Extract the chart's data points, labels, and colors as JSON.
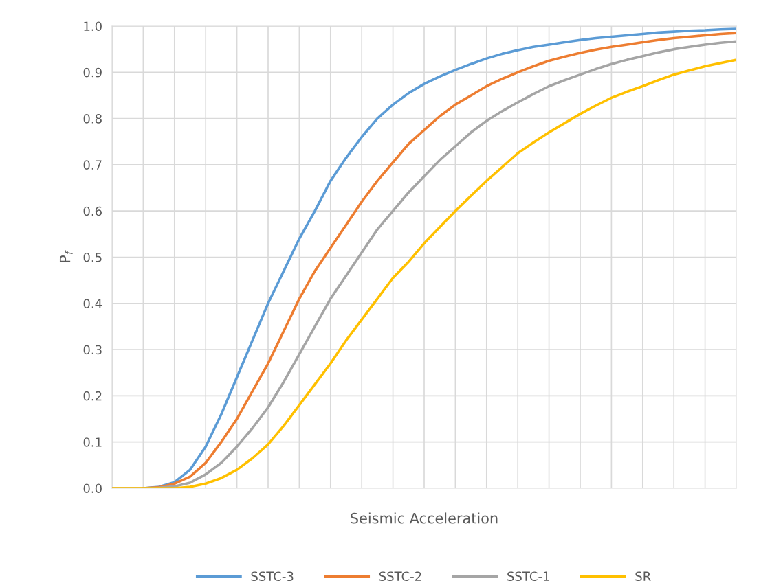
{
  "chart_data": {
    "type": "line",
    "xlabel": "Seismic Acceleration",
    "ylabel": "P$_{f}$",
    "categories": [
      null,
      null,
      null,
      null,
      null,
      null,
      null,
      null,
      null,
      null,
      null,
      null,
      null,
      null,
      null,
      null,
      null,
      null,
      null,
      null,
      null,
      null,
      null,
      null,
      null,
      null,
      null,
      null,
      null,
      null,
      null,
      null,
      null,
      null,
      null,
      null,
      null,
      null,
      null,
      null,
      null
    ],
    "series": [
      {
        "name": "SSTC-3",
        "color": "#5b9bd5",
        "values": [
          null,
          null,
          0,
          0.003,
          0.013,
          0.04,
          0.09,
          0.16,
          0.24,
          0.32,
          0.4,
          0.47,
          0.54,
          0.6,
          0.665,
          0.715,
          0.76,
          0.8,
          0.83,
          0.855,
          0.875,
          0.891,
          0.905,
          0.918,
          0.93,
          0.94,
          0.948,
          0.955,
          0.96,
          0.965,
          0.97,
          0.974,
          0.977,
          0.98,
          0.983,
          0.986,
          0.988,
          0.99,
          0.991,
          0.993,
          0.994
        ]
      },
      {
        "name": "SSTC-2",
        "color": "#ed7d31",
        "values": [
          null,
          null,
          0,
          0.002,
          0.01,
          0.025,
          0.055,
          0.1,
          0.15,
          0.21,
          0.27,
          0.34,
          0.41,
          0.47,
          0.52,
          0.57,
          0.62,
          0.665,
          0.705,
          0.745,
          0.775,
          0.805,
          0.83,
          0.85,
          0.87,
          0.886,
          0.9,
          0.913,
          0.925,
          0.934,
          0.942,
          0.949,
          0.955,
          0.96,
          0.965,
          0.97,
          0.974,
          0.977,
          0.98,
          0.983,
          0.985
        ]
      },
      {
        "name": "SSTC-1",
        "color": "#a5a5a5",
        "values": [
          0,
          0,
          0,
          0.001,
          0.004,
          0.012,
          0.03,
          0.055,
          0.09,
          0.13,
          0.175,
          0.23,
          0.29,
          0.35,
          0.41,
          0.46,
          0.51,
          0.56,
          0.6,
          0.64,
          0.675,
          0.71,
          0.74,
          0.77,
          0.795,
          0.816,
          0.835,
          0.853,
          0.87,
          0.883,
          0.895,
          0.907,
          0.918,
          0.927,
          0.935,
          0.943,
          0.95,
          0.955,
          0.96,
          0.964,
          0.967
        ]
      },
      {
        "name": "SR",
        "color": "#ffc000",
        "values": [
          0,
          0,
          0,
          0,
          0,
          0.003,
          0.01,
          0.022,
          0.04,
          0.065,
          0.095,
          0.135,
          0.18,
          0.225,
          0.27,
          0.32,
          0.365,
          0.41,
          0.455,
          0.49,
          0.53,
          0.565,
          0.6,
          0.633,
          0.665,
          0.695,
          0.725,
          0.748,
          0.77,
          0.79,
          0.81,
          0.828,
          0.845,
          0.858,
          0.87,
          0.883,
          0.895,
          0.904,
          0.913,
          0.92,
          0.927
        ]
      }
    ],
    "ylim": [
      0,
      1
    ],
    "yticks": [
      {
        "value": 0,
        "label": "0.0"
      },
      {
        "value": 0.1,
        "label": "0.1"
      },
      {
        "value": 0.2,
        "label": "0.2"
      },
      {
        "value": 0.3,
        "label": "0.3"
      },
      {
        "value": 0.4,
        "label": "0.4"
      },
      {
        "value": 0.5,
        "label": "0.5"
      },
      {
        "value": 0.6,
        "label": "0.6"
      },
      {
        "value": 0.7,
        "label": "0.7"
      },
      {
        "value": 0.8,
        "label": "0.8"
      },
      {
        "value": 0.9,
        "label": "0.9"
      },
      {
        "value": 1,
        "label": "1.0"
      }
    ],
    "grid": true,
    "legend": "bottom",
    "marker": "none",
    "line_style": "solid"
  }
}
